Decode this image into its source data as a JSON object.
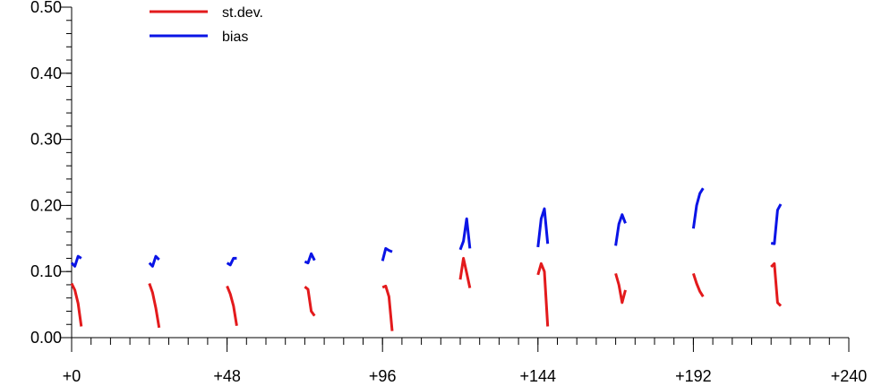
{
  "chart_data": {
    "type": "line",
    "title": "",
    "xlabel": "",
    "ylabel": "",
    "xlim": [
      0,
      240
    ],
    "ylim": [
      0,
      0.5
    ],
    "x_ticks": [
      0,
      48,
      96,
      144,
      192,
      240
    ],
    "x_tick_labels": [
      "+0",
      "+48",
      "+96",
      "+144",
      "+192",
      "+240"
    ],
    "x_minor_step": 6,
    "y_ticks": [
      0,
      0.1,
      0.2,
      0.3,
      0.4,
      0.5
    ],
    "y_tick_labels": [
      "0.00",
      "0.10",
      "0.20",
      "0.30",
      "0.40",
      "0.50"
    ],
    "y_minor_step": 0.02,
    "grid": false,
    "legend": {
      "position": "top-left",
      "entries": [
        {
          "name": "st.dev.",
          "color": "#e31a1c"
        },
        {
          "name": "bias",
          "color": "#0a14e6"
        }
      ]
    },
    "series": [
      {
        "name": "st.dev.",
        "color": "#e31a1c",
        "segments": [
          [
            [
              0,
              0.082
            ],
            [
              1,
              0.072
            ],
            [
              2,
              0.052
            ],
            [
              3,
              0.017
            ]
          ],
          [
            [
              24,
              0.082
            ],
            [
              25,
              0.068
            ],
            [
              26,
              0.045
            ],
            [
              27,
              0.015
            ]
          ],
          [
            [
              48,
              0.078
            ],
            [
              49,
              0.066
            ],
            [
              50,
              0.048
            ],
            [
              51,
              0.018
            ]
          ],
          [
            [
              72,
              0.077
            ],
            [
              73,
              0.073
            ],
            [
              74,
              0.04
            ],
            [
              75,
              0.033
            ]
          ],
          [
            [
              96,
              0.076
            ],
            [
              97,
              0.078
            ],
            [
              98,
              0.062
            ],
            [
              99,
              0.01
            ]
          ],
          [
            [
              120,
              0.088
            ],
            [
              121,
              0.12
            ],
            [
              122,
              0.098
            ],
            [
              123,
              0.075
            ]
          ],
          [
            [
              144,
              0.095
            ],
            [
              145,
              0.112
            ],
            [
              146,
              0.1
            ],
            [
              147,
              0.017
            ]
          ],
          [
            [
              168,
              0.097
            ],
            [
              169,
              0.08
            ],
            [
              170,
              0.053
            ],
            [
              171,
              0.072
            ]
          ],
          [
            [
              192,
              0.097
            ],
            [
              193,
              0.082
            ],
            [
              194,
              0.07
            ],
            [
              195,
              0.062
            ]
          ],
          [
            [
              216,
              0.107
            ],
            [
              217,
              0.112
            ],
            [
              218,
              0.053
            ],
            [
              219,
              0.048
            ]
          ]
        ]
      },
      {
        "name": "bias",
        "color": "#0a14e6",
        "segments": [
          [
            [
              0,
              0.113
            ],
            [
              1,
              0.108
            ],
            [
              2,
              0.123
            ],
            [
              3,
              0.12
            ]
          ],
          [
            [
              24,
              0.113
            ],
            [
              25,
              0.108
            ],
            [
              26,
              0.123
            ],
            [
              27,
              0.118
            ]
          ],
          [
            [
              48,
              0.113
            ],
            [
              49,
              0.11
            ],
            [
              50,
              0.12
            ],
            [
              51,
              0.12
            ]
          ],
          [
            [
              72,
              0.115
            ],
            [
              73,
              0.113
            ],
            [
              74,
              0.127
            ],
            [
              75,
              0.117
            ]
          ],
          [
            [
              96,
              0.116
            ],
            [
              97,
              0.135
            ],
            [
              98,
              0.132
            ],
            [
              99,
              0.13
            ]
          ],
          [
            [
              120,
              0.133
            ],
            [
              121,
              0.146
            ],
            [
              122,
              0.18
            ],
            [
              123,
              0.135
            ]
          ],
          [
            [
              144,
              0.137
            ],
            [
              145,
              0.18
            ],
            [
              146,
              0.195
            ],
            [
              147,
              0.142
            ]
          ],
          [
            [
              168,
              0.139
            ],
            [
              169,
              0.172
            ],
            [
              170,
              0.186
            ],
            [
              171,
              0.173
            ]
          ],
          [
            [
              192,
              0.165
            ],
            [
              193,
              0.2
            ],
            [
              194,
              0.218
            ],
            [
              195,
              0.226
            ]
          ],
          [
            [
              216,
              0.143
            ],
            [
              217,
              0.142
            ],
            [
              218,
              0.193
            ],
            [
              219,
              0.202
            ]
          ]
        ]
      }
    ]
  }
}
